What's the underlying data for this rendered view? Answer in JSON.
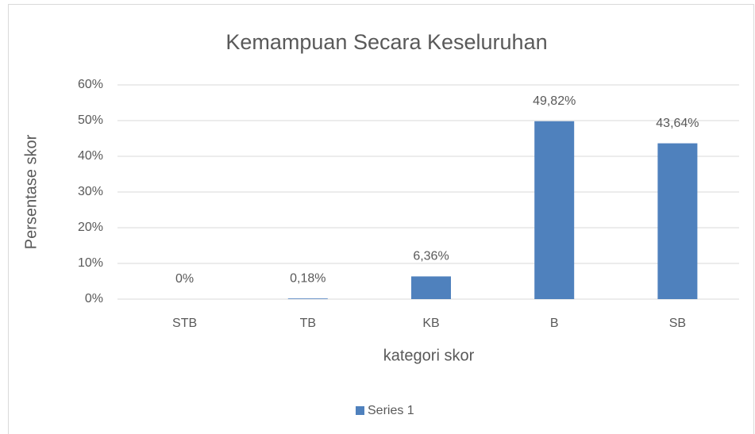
{
  "chart_data": {
    "type": "bar",
    "title": "Kemampuan Secara Keseluruhan",
    "x_label": "kategori skor",
    "y_label": "Persentase skor",
    "categories": [
      "STB",
      "TB",
      "KB",
      "B",
      "SB"
    ],
    "series": [
      {
        "name": "Series 1",
        "color": "#4f81bd",
        "values": [
          0,
          0.18,
          6.36,
          49.82,
          43.64
        ],
        "value_labels": [
          "0%",
          "0,18%",
          "6,36%",
          "49,82%",
          "43,64%"
        ]
      }
    ],
    "ylim": [
      0,
      60
    ],
    "yticks": [
      {
        "value": 0,
        "label": "0%"
      },
      {
        "value": 10,
        "label": "10%"
      },
      {
        "value": 20,
        "label": "20%"
      },
      {
        "value": 30,
        "label": "30%"
      },
      {
        "value": 40,
        "label": "40%"
      },
      {
        "value": 50,
        "label": "50%"
      },
      {
        "value": 60,
        "label": "60%"
      }
    ],
    "grid": true,
    "legend": "bottom"
  }
}
